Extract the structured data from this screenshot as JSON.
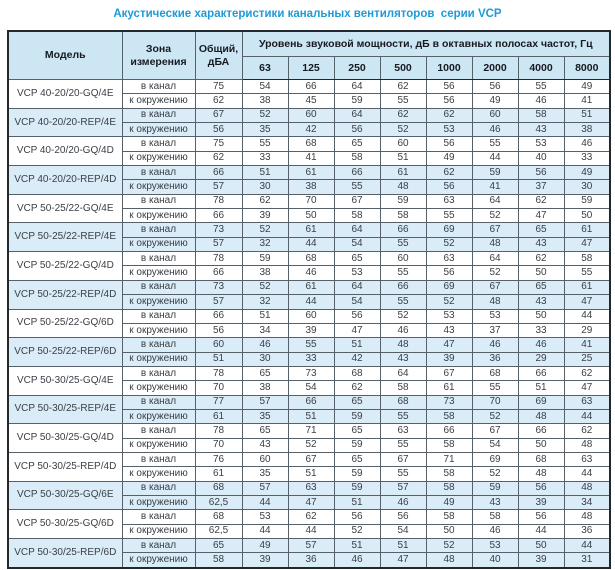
{
  "title": "Акустические характеристики канальных вентиляторов  серии VCP",
  "colors": {
    "title_accent": "#1f9ad6",
    "header_fill": "#cde6f4",
    "shaded_row_fill": "#d9ecf8",
    "border_dark": "#23282d",
    "text": "#3b4046"
  },
  "table": {
    "headers": {
      "model": "Модель",
      "zone": "Зона измерения",
      "total": "Общий, дБА",
      "octave_band_title": "Уровень звуковой мощности, дБ в октавных полосах частот, Гц",
      "frequencies": [
        "63",
        "125",
        "250",
        "500",
        "1000",
        "2000",
        "4000",
        "8000"
      ]
    },
    "zone_labels": [
      "в канал",
      "к окружению"
    ],
    "models": [
      {
        "name": "VCP 40-20/20-GQ/4E",
        "shaded": false,
        "rows": [
          {
            "zone": "в канал",
            "total": "75",
            "levels": [
              "54",
              "66",
              "64",
              "62",
              "56",
              "56",
              "55",
              "49"
            ]
          },
          {
            "zone": "к окружению",
            "total": "62",
            "levels": [
              "38",
              "45",
              "59",
              "55",
              "56",
              "49",
              "46",
              "41"
            ]
          }
        ]
      },
      {
        "name": "VCP 40-20/20-REP/4E",
        "shaded": true,
        "rows": [
          {
            "zone": "в канал",
            "total": "67",
            "levels": [
              "52",
              "60",
              "64",
              "62",
              "62",
              "60",
              "58",
              "51"
            ]
          },
          {
            "zone": "к окружению",
            "total": "56",
            "levels": [
              "35",
              "42",
              "56",
              "52",
              "53",
              "46",
              "43",
              "38"
            ]
          }
        ]
      },
      {
        "name": "VCP 40-20/20-GQ/4D",
        "shaded": false,
        "rows": [
          {
            "zone": "в канал",
            "total": "75",
            "levels": [
              "55",
              "68",
              "65",
              "60",
              "56",
              "55",
              "53",
              "46"
            ]
          },
          {
            "zone": "к окружению",
            "total": "62",
            "levels": [
              "33",
              "41",
              "58",
              "51",
              "49",
              "44",
              "40",
              "33"
            ]
          }
        ]
      },
      {
        "name": "VCP 40-20/20-REP/4D",
        "shaded": true,
        "rows": [
          {
            "zone": "в канал",
            "total": "66",
            "levels": [
              "51",
              "61",
              "66",
              "61",
              "62",
              "59",
              "56",
              "49"
            ]
          },
          {
            "zone": "к окружению",
            "total": "57",
            "levels": [
              "30",
              "38",
              "55",
              "48",
              "56",
              "41",
              "37",
              "30"
            ]
          }
        ]
      },
      {
        "name": "VCP 50-25/22-GQ/4E",
        "shaded": false,
        "rows": [
          {
            "zone": "в канал",
            "total": "78",
            "levels": [
              "62",
              "70",
              "67",
              "59",
              "63",
              "64",
              "62",
              "59"
            ]
          },
          {
            "zone": "к окружению",
            "total": "66",
            "levels": [
              "39",
              "50",
              "58",
              "58",
              "55",
              "52",
              "47",
              "50"
            ]
          }
        ]
      },
      {
        "name": "VCP 50-25/22-REP/4E",
        "shaded": true,
        "rows": [
          {
            "zone": "в канал",
            "total": "73",
            "levels": [
              "52",
              "61",
              "64",
              "66",
              "69",
              "67",
              "65",
              "61"
            ]
          },
          {
            "zone": "к окружению",
            "total": "57",
            "levels": [
              "32",
              "44",
              "54",
              "55",
              "52",
              "48",
              "43",
              "47"
            ]
          }
        ]
      },
      {
        "name": "VCP 50-25/22-GQ/4D",
        "shaded": false,
        "rows": [
          {
            "zone": "в канал",
            "total": "78",
            "levels": [
              "59",
              "68",
              "65",
              "60",
              "63",
              "64",
              "62",
              "58"
            ]
          },
          {
            "zone": "к окружению",
            "total": "66",
            "levels": [
              "38",
              "46",
              "53",
              "55",
              "56",
              "52",
              "50",
              "55"
            ]
          }
        ]
      },
      {
        "name": "VCP 50-25/22-REP/4D",
        "shaded": true,
        "rows": [
          {
            "zone": "в канал",
            "total": "73",
            "levels": [
              "52",
              "61",
              "64",
              "66",
              "69",
              "67",
              "65",
              "61"
            ]
          },
          {
            "zone": "к окружению",
            "total": "57",
            "levels": [
              "32",
              "44",
              "54",
              "55",
              "52",
              "48",
              "43",
              "47"
            ]
          }
        ]
      },
      {
        "name": "VCP 50-25/22-GQ/6D",
        "shaded": false,
        "rows": [
          {
            "zone": "в канал",
            "total": "66",
            "levels": [
              "51",
              "60",
              "56",
              "52",
              "53",
              "53",
              "50",
              "44"
            ]
          },
          {
            "zone": "к окружению",
            "total": "56",
            "levels": [
              "34",
              "39",
              "47",
              "46",
              "43",
              "37",
              "33",
              "29"
            ]
          }
        ]
      },
      {
        "name": "VCP 50-25/22-REP/6D",
        "shaded": true,
        "rows": [
          {
            "zone": "в канал",
            "total": "60",
            "levels": [
              "46",
              "55",
              "51",
              "48",
              "47",
              "46",
              "46",
              "41"
            ]
          },
          {
            "zone": "к окружению",
            "total": "51",
            "levels": [
              "30",
              "33",
              "42",
              "43",
              "39",
              "36",
              "29",
              "25"
            ]
          }
        ]
      },
      {
        "name": "VCP 50-30/25-GQ/4E",
        "shaded": false,
        "rows": [
          {
            "zone": "в канал",
            "total": "78",
            "levels": [
              "65",
              "73",
              "68",
              "64",
              "67",
              "68",
              "66",
              "62"
            ]
          },
          {
            "zone": "к окружению",
            "total": "70",
            "levels": [
              "38",
              "54",
              "62",
              "58",
              "61",
              "55",
              "51",
              "47"
            ]
          }
        ]
      },
      {
        "name": "VCP 50-30/25-REP/4E",
        "shaded": true,
        "rows": [
          {
            "zone": "в канал",
            "total": "77",
            "levels": [
              "57",
              "66",
              "65",
              "68",
              "73",
              "70",
              "69",
              "63"
            ]
          },
          {
            "zone": "к окружению",
            "total": "61",
            "levels": [
              "35",
              "51",
              "59",
              "55",
              "58",
              "52",
              "48",
              "44"
            ]
          }
        ]
      },
      {
        "name": "VCP 50-30/25-GQ/4D",
        "shaded": false,
        "rows": [
          {
            "zone": "в канал",
            "total": "78",
            "levels": [
              "65",
              "71",
              "65",
              "63",
              "66",
              "67",
              "66",
              "62"
            ]
          },
          {
            "zone": "к окружению",
            "total": "70",
            "levels": [
              "43",
              "52",
              "59",
              "55",
              "58",
              "54",
              "50",
              "48"
            ]
          }
        ]
      },
      {
        "name": "VCP 50-30/25-REP/4D",
        "shaded": false,
        "rows": [
          {
            "zone": "в канал",
            "total": "76",
            "levels": [
              "60",
              "67",
              "65",
              "67",
              "71",
              "69",
              "68",
              "63"
            ]
          },
          {
            "zone": "к окружению",
            "total": "61",
            "levels": [
              "35",
              "51",
              "59",
              "55",
              "58",
              "52",
              "48",
              "44"
            ]
          }
        ]
      },
      {
        "name": "VCP 50-30/25-GQ/6E",
        "shaded": true,
        "rows": [
          {
            "zone": "в канал",
            "total": "68",
            "levels": [
              "57",
              "63",
              "59",
              "57",
              "58",
              "59",
              "56",
              "48"
            ]
          },
          {
            "zone": "к окружению",
            "total": "62,5",
            "levels": [
              "44",
              "47",
              "51",
              "46",
              "49",
              "43",
              "39",
              "34"
            ]
          }
        ]
      },
      {
        "name": "VCP 50-30/25-GQ/6D",
        "shaded": false,
        "rows": [
          {
            "zone": "в канал",
            "total": "68",
            "levels": [
              "53",
              "62",
              "56",
              "56",
              "58",
              "58",
              "56",
              "48"
            ]
          },
          {
            "zone": "к окружению",
            "total": "62,5",
            "levels": [
              "44",
              "44",
              "52",
              "54",
              "50",
              "46",
              "44",
              "36"
            ]
          }
        ]
      },
      {
        "name": "VCP 50-30/25-REP/6D",
        "shaded": true,
        "rows": [
          {
            "zone": "в канал",
            "total": "65",
            "levels": [
              "49",
              "57",
              "51",
              "51",
              "52",
              "53",
              "50",
              "44"
            ]
          },
          {
            "zone": "к окружению",
            "total": "58",
            "levels": [
              "39",
              "36",
              "46",
              "47",
              "48",
              "40",
              "39",
              "31"
            ]
          }
        ]
      }
    ]
  }
}
